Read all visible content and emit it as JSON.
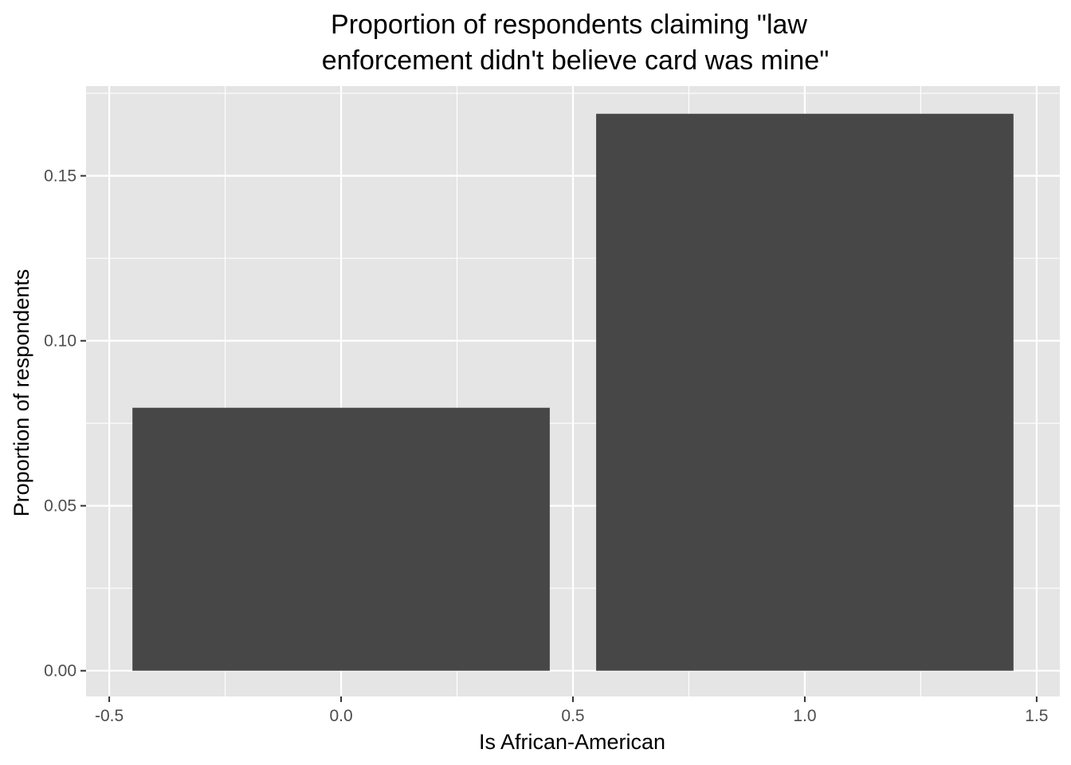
{
  "chart_data": {
    "type": "bar",
    "title_lines": [
      "Proportion of respondents claiming \"law",
      "enforcement didn't believe card was mine\""
    ],
    "xlabel": "Is African-American",
    "ylabel": "Proportion of respondents",
    "x": [
      0,
      1
    ],
    "values": [
      0.0797,
      0.1688
    ],
    "bar_width": 0.9,
    "xlim": [
      -0.55,
      1.55
    ],
    "ylim": [
      -0.0078,
      0.1772
    ],
    "x_ticks": [
      -0.5,
      0.0,
      0.5,
      1.0,
      1.5
    ],
    "x_tick_labels": [
      "-0.5",
      "0.0",
      "0.5",
      "1.0",
      "1.5"
    ],
    "y_ticks": [
      0.0,
      0.05,
      0.1,
      0.15
    ],
    "y_tick_labels": [
      "0.00",
      "0.05",
      "0.10",
      "0.15"
    ],
    "grid": true,
    "legend": "none",
    "colors": {
      "panel": "#e5e5e5",
      "grid": "#ffffff",
      "bar": "#474747",
      "tick_text": "#4d4d4d"
    }
  }
}
